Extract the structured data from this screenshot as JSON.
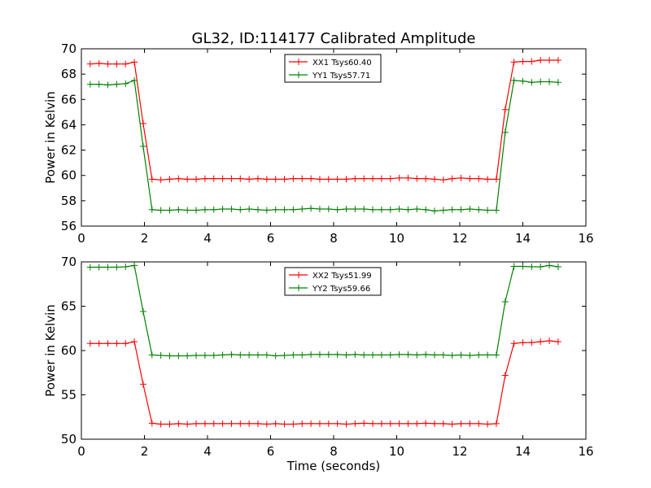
{
  "figure": {
    "title": "GL32, ID:114177 Calibrated Amplitude",
    "xlabel": "Time (seconds)"
  },
  "chart_data": [
    {
      "type": "line",
      "title": "GL32, ID:114177 Calibrated Amplitude",
      "xlabel": "",
      "ylabel": "Power in Kelvin",
      "xlim": [
        0,
        16
      ],
      "ylim": [
        56,
        70
      ],
      "xticks": [
        "0",
        "2",
        "4",
        "6",
        "8",
        "10",
        "12",
        "14",
        "16"
      ],
      "yticks": [
        "56",
        "58",
        "60",
        "62",
        "64",
        "66",
        "68",
        "70"
      ],
      "legend_position": "top-center",
      "grid": false,
      "marker": "plus",
      "x": [
        0.28,
        0.56,
        0.84,
        1.12,
        1.4,
        1.68,
        1.96,
        2.24,
        2.52,
        2.8,
        3.08,
        3.36,
        3.64,
        3.92,
        4.2,
        4.48,
        4.76,
        5.04,
        5.32,
        5.6,
        5.88,
        6.16,
        6.44,
        6.72,
        7.0,
        7.28,
        7.56,
        7.84,
        8.12,
        8.4,
        8.68,
        8.96,
        9.24,
        9.52,
        9.8,
        10.08,
        10.36,
        10.64,
        10.92,
        11.2,
        11.48,
        11.76,
        12.04,
        12.32,
        12.6,
        12.88,
        13.16,
        13.44,
        13.72,
        14.0,
        14.28,
        14.56,
        14.84,
        15.12
      ],
      "series": [
        {
          "name": "XX1 Tsys60.40",
          "color": "#ff0000",
          "values": [
            68.8,
            68.85,
            68.8,
            68.8,
            68.8,
            68.95,
            64.1,
            59.7,
            59.65,
            59.7,
            59.75,
            59.7,
            59.7,
            59.75,
            59.75,
            59.75,
            59.75,
            59.75,
            59.7,
            59.75,
            59.7,
            59.7,
            59.7,
            59.75,
            59.75,
            59.75,
            59.7,
            59.7,
            59.7,
            59.7,
            59.75,
            59.75,
            59.75,
            59.75,
            59.75,
            59.8,
            59.8,
            59.75,
            59.75,
            59.7,
            59.65,
            59.75,
            59.8,
            59.75,
            59.75,
            59.7,
            59.7,
            65.2,
            68.95,
            69.0,
            69.0,
            69.1,
            69.1,
            69.1
          ]
        },
        {
          "name": "YY1 Tsys57.71",
          "color": "#008000",
          "values": [
            67.2,
            67.2,
            67.15,
            67.2,
            67.25,
            67.5,
            62.3,
            57.3,
            57.25,
            57.25,
            57.3,
            57.25,
            57.25,
            57.3,
            57.3,
            57.35,
            57.35,
            57.3,
            57.35,
            57.3,
            57.25,
            57.3,
            57.3,
            57.3,
            57.35,
            57.4,
            57.35,
            57.35,
            57.3,
            57.35,
            57.35,
            57.35,
            57.3,
            57.3,
            57.3,
            57.35,
            57.3,
            57.35,
            57.3,
            57.2,
            57.25,
            57.3,
            57.3,
            57.35,
            57.3,
            57.25,
            57.25,
            63.4,
            67.5,
            67.45,
            67.35,
            67.4,
            67.4,
            67.35
          ]
        }
      ]
    },
    {
      "type": "line",
      "title": "",
      "xlabel": "Time (seconds)",
      "ylabel": "Power in Kelvin",
      "xlim": [
        0,
        16
      ],
      "ylim": [
        50,
        70
      ],
      "xticks": [
        "0",
        "2",
        "4",
        "6",
        "8",
        "10",
        "12",
        "14",
        "16"
      ],
      "yticks": [
        "50",
        "55",
        "60",
        "65",
        "70"
      ],
      "legend_position": "top-center",
      "grid": false,
      "marker": "plus",
      "x": [
        0.28,
        0.56,
        0.84,
        1.12,
        1.4,
        1.68,
        1.96,
        2.24,
        2.52,
        2.8,
        3.08,
        3.36,
        3.64,
        3.92,
        4.2,
        4.48,
        4.76,
        5.04,
        5.32,
        5.6,
        5.88,
        6.16,
        6.44,
        6.72,
        7.0,
        7.28,
        7.56,
        7.84,
        8.12,
        8.4,
        8.68,
        8.96,
        9.24,
        9.52,
        9.8,
        10.08,
        10.36,
        10.64,
        10.92,
        11.2,
        11.48,
        11.76,
        12.04,
        12.32,
        12.6,
        12.88,
        13.16,
        13.44,
        13.72,
        14.0,
        14.28,
        14.56,
        14.84,
        15.12
      ],
      "series": [
        {
          "name": "XX2 Tsys51.99",
          "color": "#ff0000",
          "values": [
            60.8,
            60.8,
            60.8,
            60.8,
            60.8,
            61.0,
            56.2,
            51.8,
            51.7,
            51.7,
            51.75,
            51.7,
            51.75,
            51.75,
            51.75,
            51.75,
            51.75,
            51.75,
            51.75,
            51.75,
            51.7,
            51.75,
            51.7,
            51.7,
            51.75,
            51.75,
            51.75,
            51.75,
            51.75,
            51.7,
            51.75,
            51.8,
            51.75,
            51.75,
            51.75,
            51.75,
            51.75,
            51.75,
            51.8,
            51.75,
            51.75,
            51.7,
            51.75,
            51.75,
            51.75,
            51.7,
            51.75,
            57.2,
            60.8,
            60.9,
            60.9,
            61.0,
            61.1,
            61.0
          ]
        },
        {
          "name": "YY2 Tsys59.66",
          "color": "#008000",
          "values": [
            69.4,
            69.4,
            69.4,
            69.4,
            69.45,
            69.6,
            64.4,
            59.5,
            59.45,
            59.4,
            59.4,
            59.4,
            59.45,
            59.45,
            59.45,
            59.5,
            59.55,
            59.5,
            59.5,
            59.5,
            59.5,
            59.4,
            59.45,
            59.5,
            59.5,
            59.55,
            59.55,
            59.55,
            59.55,
            59.5,
            59.55,
            59.5,
            59.5,
            59.5,
            59.5,
            59.55,
            59.55,
            59.5,
            59.55,
            59.5,
            59.5,
            59.45,
            59.5,
            59.45,
            59.5,
            59.5,
            59.5,
            65.5,
            69.5,
            69.5,
            69.45,
            69.45,
            69.6,
            69.45
          ]
        }
      ]
    }
  ]
}
